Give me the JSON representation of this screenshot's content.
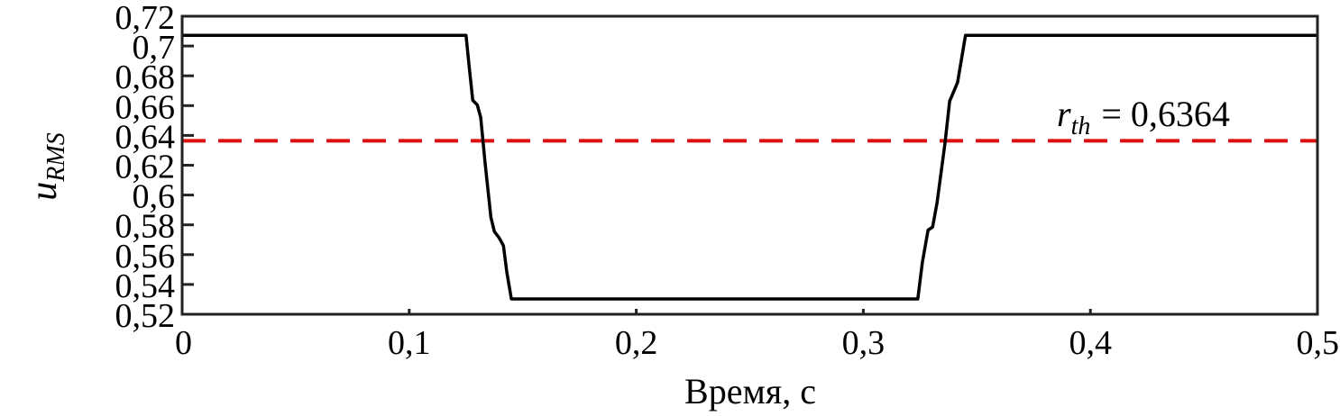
{
  "chart_data": {
    "type": "line",
    "title": "",
    "xlabel": "Время, с",
    "ylabel": "u",
    "ylabel_subscript": "RMS",
    "xlim": [
      0,
      0.5
    ],
    "ylim": [
      0.52,
      0.72
    ],
    "grid": false,
    "x_ticks": [
      "0",
      "0,1",
      "0,2",
      "0,3",
      "0,4",
      "0,5"
    ],
    "x_tick_values": [
      0,
      0.1,
      0.2,
      0.3,
      0.4,
      0.5
    ],
    "y_ticks": [
      "0,52",
      "0,54",
      "0,56",
      "0,58",
      "0,6",
      "0,62",
      "0,64",
      "0,66",
      "0,68",
      "0,7",
      "0,72"
    ],
    "y_tick_values": [
      0.52,
      0.54,
      0.56,
      0.58,
      0.6,
      0.62,
      0.64,
      0.66,
      0.68,
      0.7,
      0.72
    ],
    "series": [
      {
        "color": "#000000",
        "x": [
          0,
          0.125,
          0.1265,
          0.128,
          0.13,
          0.1315,
          0.1335,
          0.136,
          0.1375,
          0.1395,
          0.1415,
          0.143,
          0.145,
          0.324,
          0.326,
          0.3285,
          0.3305,
          0.3325,
          0.336,
          0.338,
          0.339,
          0.3415,
          0.345,
          0.5
        ],
        "y": [
          0.7071,
          0.7071,
          0.685,
          0.6635,
          0.6605,
          0.652,
          0.62,
          0.585,
          0.5755,
          0.5715,
          0.566,
          0.548,
          0.5303,
          0.5303,
          0.555,
          0.5765,
          0.5785,
          0.595,
          0.635,
          0.663,
          0.6665,
          0.6755,
          0.7071,
          0.7071
        ]
      }
    ],
    "threshold": {
      "value": 0.6364,
      "color": "#dd1111",
      "style": "dashed",
      "label_symbol": "r",
      "label_subscript": "th",
      "label_value": "= 0,6364"
    }
  }
}
